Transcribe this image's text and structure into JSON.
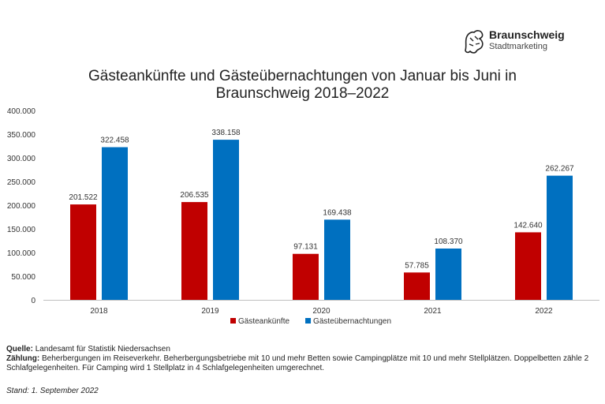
{
  "logo": {
    "name": "Braunschweig",
    "subtitle": "Stadtmarketing"
  },
  "chart_data": {
    "type": "bar",
    "title_line1": "Gästeankünfte und Gästeübernachtungen von Januar bis Juni in",
    "title_line2": "Braunschweig 2018–2022",
    "categories": [
      "2018",
      "2019",
      "2020",
      "2021",
      "2022"
    ],
    "series": [
      {
        "name": "Gästeankünfte",
        "color": "#C00000",
        "values": [
          201522,
          206535,
          97131,
          57785,
          142640
        ],
        "labels": [
          "201.522",
          "206.535",
          "97.131",
          "57.785",
          "142.640"
        ]
      },
      {
        "name": "Gästeübernachtungen",
        "color": "#0070C0",
        "values": [
          322458,
          338158,
          169438,
          108370,
          262267
        ],
        "labels": [
          "322.458",
          "338.158",
          "169.438",
          "108.370",
          "262.267"
        ]
      }
    ],
    "ylim": [
      0,
      400000
    ],
    "yticks": [
      0,
      50000,
      100000,
      150000,
      200000,
      250000,
      300000,
      350000,
      400000
    ],
    "ytick_labels": [
      "0",
      "50.000",
      "100.000",
      "150.000",
      "200.000",
      "250.000",
      "300.000",
      "350.000",
      "400.000"
    ],
    "xlabel": "",
    "ylabel": "",
    "legend_position": "bottom"
  },
  "footer": {
    "source_label": "Quelle:",
    "source_text": "Landesamt für Statistik Niedersachsen",
    "count_label": "Zählung:",
    "count_text": "Beherbergungen im Reiseverkehr. Beherbergungsbetriebe mit 10 und mehr Betten sowie Campingplätze mit 10 und mehr Stellplätzen. Doppelbetten zähle 2 Schlafgelegenheiten. Für Camping wird 1 Stellplatz in 4 Schlafgelegenheiten umgerechnet.",
    "stand": "Stand: 1. September 2022"
  }
}
